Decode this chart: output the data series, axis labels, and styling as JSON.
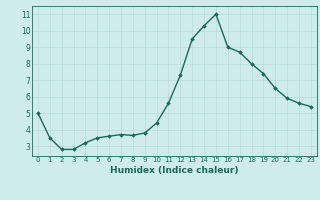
{
  "x": [
    0,
    1,
    2,
    3,
    4,
    5,
    6,
    7,
    8,
    9,
    10,
    11,
    12,
    13,
    14,
    15,
    16,
    17,
    18,
    19,
    20,
    21,
    22,
    23
  ],
  "y": [
    5.0,
    3.5,
    2.8,
    2.8,
    3.2,
    3.5,
    3.6,
    3.7,
    3.65,
    3.8,
    4.4,
    5.6,
    7.3,
    9.5,
    10.3,
    11.0,
    9.0,
    8.7,
    8.0,
    7.4,
    6.5,
    5.9,
    5.6,
    5.4
  ],
  "xlabel": "Humidex (Indice chaleur)",
  "line_color": "#1a6b5a",
  "marker": "D",
  "marker_size": 1.8,
  "bg_color": "#ceecea",
  "grid_color": "#b8dbd9",
  "tick_color": "#1a6b5a",
  "label_color": "#1a6b5a",
  "ylim": [
    2.4,
    11.5
  ],
  "xlim": [
    -0.5,
    23.5
  ],
  "yticks": [
    3,
    4,
    5,
    6,
    7,
    8,
    9,
    10,
    11
  ],
  "xtick_labels": [
    "0",
    "1",
    "2",
    "3",
    "4",
    "5",
    "6",
    "7",
    "8",
    "9",
    "10",
    "11",
    "12",
    "13",
    "14",
    "15",
    "16",
    "17",
    "18",
    "19",
    "20",
    "21",
    "22",
    "23"
  ],
  "linewidth": 1.0,
  "tick_fontsize": 5.0,
  "xlabel_fontsize": 6.5
}
